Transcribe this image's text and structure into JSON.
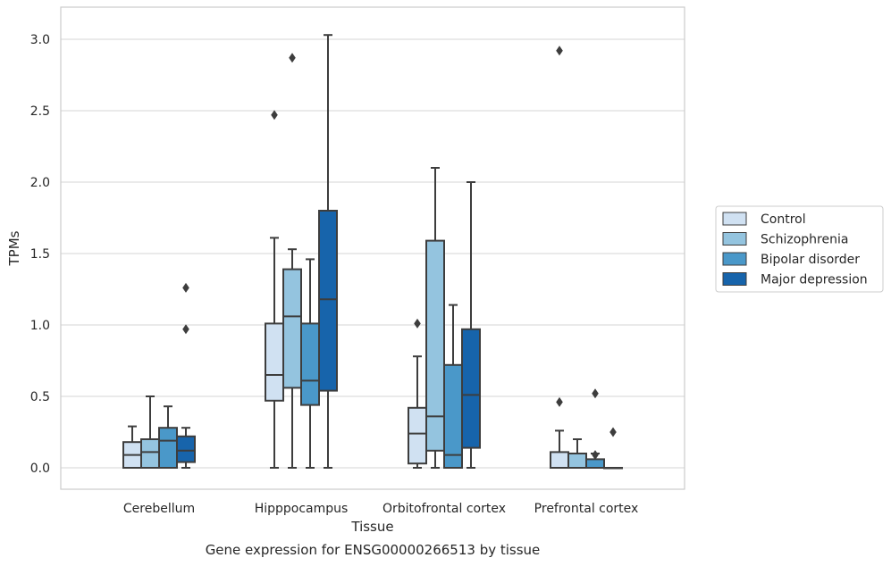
{
  "chart_data": {
    "type": "box",
    "caption": "Gene expression for ENSG00000266513 by tissue",
    "xlabel": "Tissue",
    "ylabel": "TPMs",
    "ylim": [
      -0.15,
      3.22
    ],
    "yticks": [
      0.0,
      0.5,
      1.0,
      1.5,
      2.0,
      2.5,
      3.0
    ],
    "ytick_labels": [
      "0.0",
      "0.5",
      "1.0",
      "1.5",
      "2.0",
      "2.5",
      "3.0"
    ],
    "grid": "horizontal",
    "legend_position": "right",
    "categories": [
      "Cerebellum",
      "Hipppocampus",
      "Orbitofrontal cortex",
      "Prefrontal cortex"
    ],
    "series": [
      {
        "name": "Control",
        "color": "#d0e1f2",
        "boxes": [
          {
            "whislo": 0.0,
            "q1": 0.0,
            "med": 0.09,
            "q3": 0.18,
            "whishi": 0.29,
            "fliers": []
          },
          {
            "whislo": 0.0,
            "q1": 0.47,
            "med": 0.65,
            "q3": 1.01,
            "whishi": 1.61,
            "fliers": [
              2.47
            ]
          },
          {
            "whislo": 0.0,
            "q1": 0.03,
            "med": 0.24,
            "q3": 0.42,
            "whishi": 0.78,
            "fliers": [
              1.01
            ]
          },
          {
            "whislo": 0.0,
            "q1": 0.0,
            "med": 0.0,
            "q3": 0.11,
            "whishi": 0.26,
            "fliers": [
              0.46,
              2.92
            ]
          }
        ]
      },
      {
        "name": "Schizophrenia",
        "color": "#94c4df",
        "boxes": [
          {
            "whislo": 0.0,
            "q1": 0.0,
            "med": 0.11,
            "q3": 0.2,
            "whishi": 0.5,
            "fliers": []
          },
          {
            "whislo": 0.0,
            "q1": 0.56,
            "med": 1.06,
            "q3": 1.39,
            "whishi": 1.53,
            "fliers": [
              2.87
            ]
          },
          {
            "whislo": 0.0,
            "q1": 0.12,
            "med": 0.36,
            "q3": 1.59,
            "whishi": 2.1,
            "fliers": []
          },
          {
            "whislo": 0.0,
            "q1": 0.0,
            "med": 0.0,
            "q3": 0.1,
            "whishi": 0.2,
            "fliers": []
          }
        ]
      },
      {
        "name": "Bipolar disorder",
        "color": "#4a98c9",
        "boxes": [
          {
            "whislo": 0.0,
            "q1": 0.0,
            "med": 0.19,
            "q3": 0.28,
            "whishi": 0.43,
            "fliers": []
          },
          {
            "whislo": 0.0,
            "q1": 0.44,
            "med": 0.61,
            "q3": 1.01,
            "whishi": 1.46,
            "fliers": []
          },
          {
            "whislo": 0.0,
            "q1": 0.0,
            "med": 0.09,
            "q3": 0.72,
            "whishi": 1.14,
            "fliers": []
          },
          {
            "whislo": 0.0,
            "q1": 0.0,
            "med": 0.0,
            "q3": 0.06,
            "whishi": 0.1,
            "fliers": [
              0.09,
              0.52
            ]
          }
        ]
      },
      {
        "name": "Major depression",
        "color": "#1764ab",
        "boxes": [
          {
            "whislo": 0.0,
            "q1": 0.04,
            "med": 0.12,
            "q3": 0.22,
            "whishi": 0.28,
            "fliers": [
              0.97,
              1.26
            ]
          },
          {
            "whislo": 0.0,
            "q1": 0.54,
            "med": 1.18,
            "q3": 1.8,
            "whishi": 3.03,
            "fliers": []
          },
          {
            "whislo": 0.0,
            "q1": 0.14,
            "med": 0.51,
            "q3": 0.97,
            "whishi": 2.0,
            "fliers": []
          },
          {
            "whislo": 0.0,
            "q1": 0.0,
            "med": 0.0,
            "q3": 0.0,
            "whishi": 0.0,
            "fliers": [
              0.25
            ]
          }
        ]
      }
    ]
  }
}
